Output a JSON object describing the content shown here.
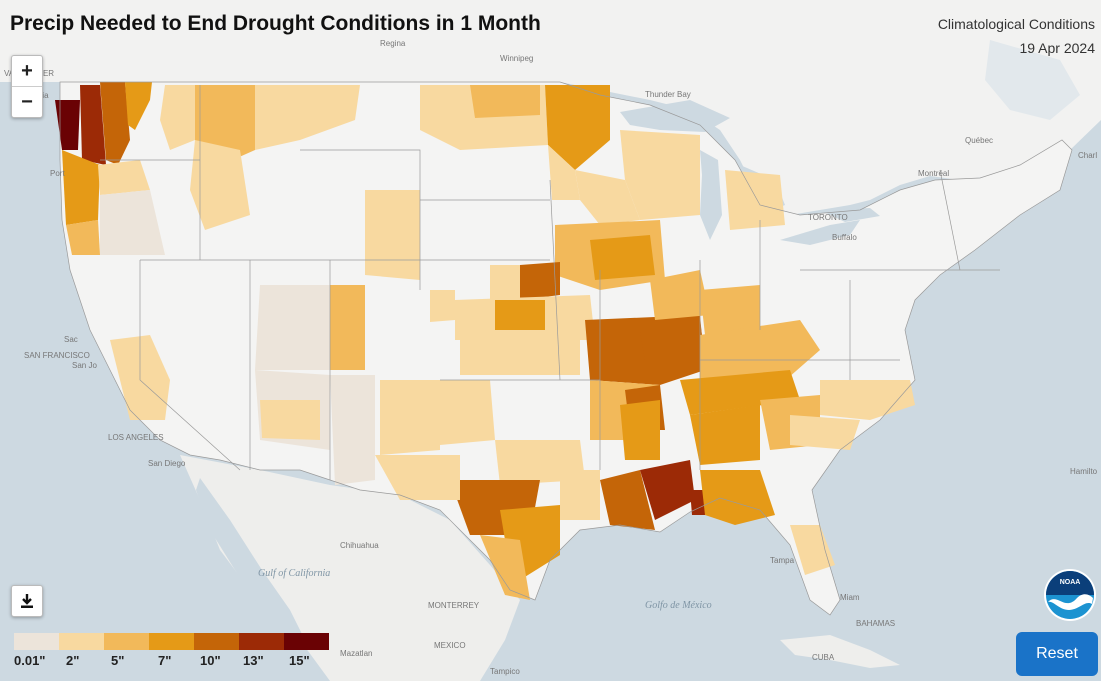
{
  "title": "Precip Needed to End Drought Conditions in 1 Month",
  "condition_type": "Climatological Conditions",
  "date": "19 Apr 2024",
  "controls": {
    "zoom_in": "+",
    "zoom_out": "−",
    "reset": "Reset",
    "download_icon": "download-icon"
  },
  "logo": {
    "name": "noaa-logo",
    "text": "NOAA"
  },
  "legend": {
    "colors": [
      "#ece4da",
      "#f8d9a0",
      "#f2b95a",
      "#e59a17",
      "#c46508",
      "#9c2a06",
      "#6a0204"
    ],
    "labels": [
      "0.01\"",
      "2\"",
      "5\"",
      "7\"",
      "10\"",
      "13\"",
      "15\""
    ]
  },
  "map_labels": {
    "regina": "Regina",
    "winnipeg": "Winnipeg",
    "thunder_bay": "Thunder Bay",
    "quebec": "Québec",
    "montreal": "Montréal",
    "toronto": "TORONTO",
    "buffalo": "Buffalo",
    "vancouver": "VANCOUVER",
    "victoria": "Victoria",
    "portland": "Port",
    "san_francisco": "SAN FRANCISCO",
    "san_jose": "San Jo",
    "sacramento": "Sac",
    "los_angeles": "LOS ANGELES",
    "san_diego": "San Diego",
    "chihuahua": "Chihuahua",
    "monterrey": "MONTERREY",
    "mexico": "MEXICO",
    "mazatlan": "Mazatlan",
    "tampico": "Tampico",
    "gulf_of_california": "Gulf of California",
    "gulf_of_mexico": "Golfo de México",
    "bahamas": "BAHAMAS",
    "cuba": "CUBA",
    "hamilton": "Hamilto",
    "charlotte": "Charl",
    "tampa": "Tampa",
    "miami": "Miam"
  }
}
